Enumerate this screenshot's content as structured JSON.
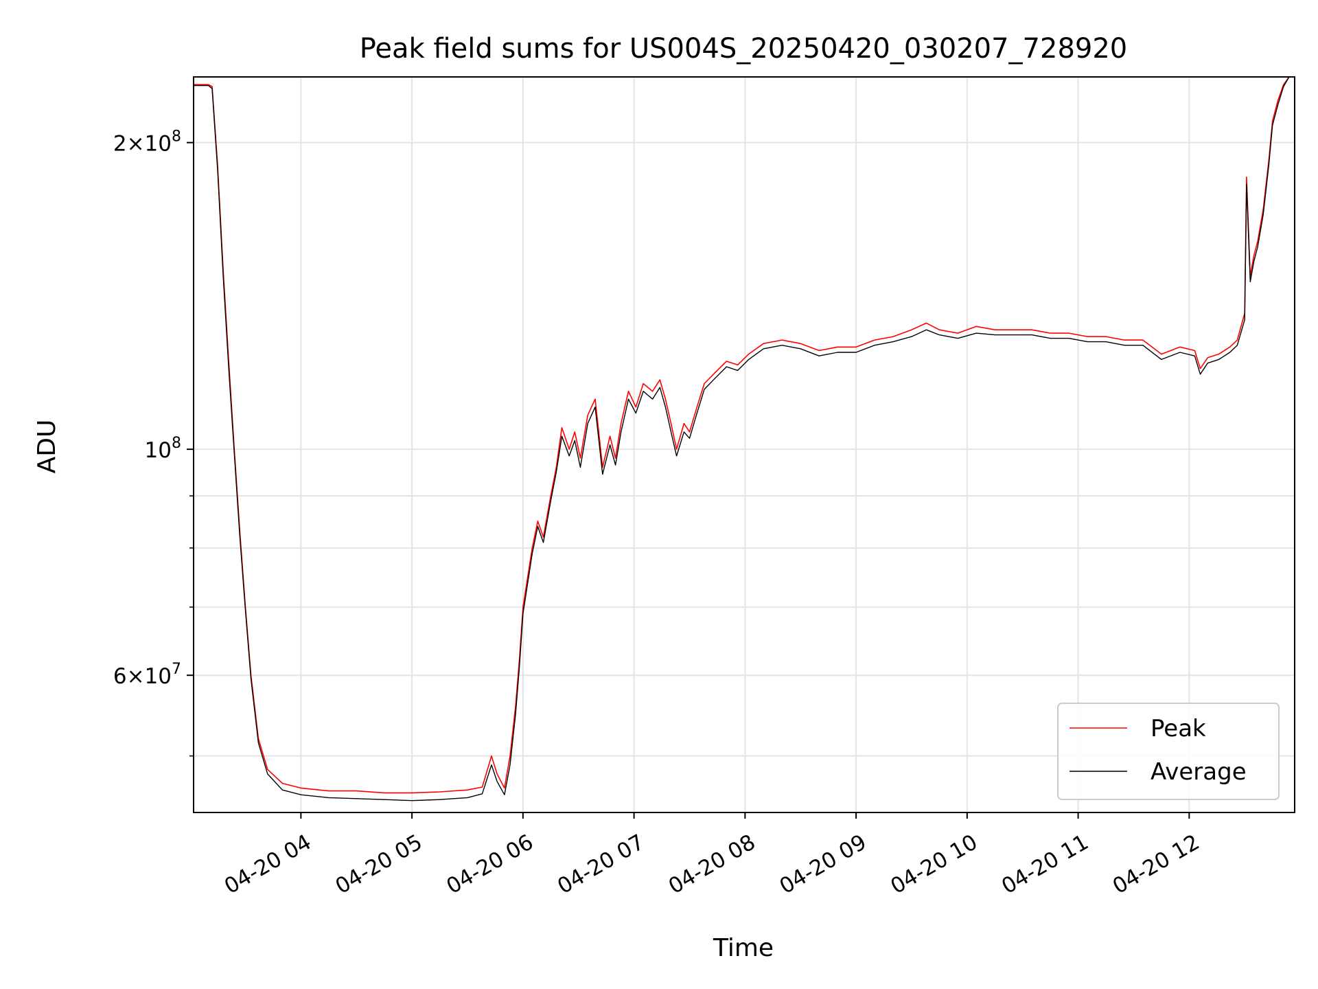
{
  "chart_data": {
    "type": "line",
    "title": "Peak field sums for US004S_20250420_030207_728920",
    "xlabel": "Time",
    "ylabel": "ADU",
    "y_scale": "log",
    "ylim": [
      44000000,
      232000000
    ],
    "xlim": [
      "2025-04-20 03:02",
      "2025-04-20 12:57"
    ],
    "grid": true,
    "legend_position": "lower-right",
    "x_ticks": [
      "04-20 04",
      "04-20 05",
      "04-20 06",
      "04-20 07",
      "04-20 08",
      "04-20 09",
      "04-20 10",
      "04-20 11",
      "04-20 12"
    ],
    "x_tick_times": [
      "2025-04-20 04:00",
      "2025-04-20 05:00",
      "2025-04-20 06:00",
      "2025-04-20 07:00",
      "2025-04-20 08:00",
      "2025-04-20 09:00",
      "2025-04-20 10:00",
      "2025-04-20 11:00",
      "2025-04-20 12:00"
    ],
    "y_tick_labels": [
      {
        "value": 200000000,
        "mantissa": "2",
        "exponent": "8"
      },
      {
        "value": 100000000,
        "mantissa": "",
        "exponent": "8"
      },
      {
        "value": 60000000,
        "mantissa": "6",
        "exponent": "7"
      }
    ],
    "y_minor_grid": [
      50000000,
      70000000,
      80000000,
      90000000
    ],
    "series": [
      {
        "name": "Peak",
        "color": "#ff0000",
        "x": [
          "2025-04-20 03:02",
          "2025-04-20 03:10",
          "2025-04-20 03:12",
          "2025-04-20 03:15",
          "2025-04-20 03:18",
          "2025-04-20 03:21",
          "2025-04-20 03:24",
          "2025-04-20 03:27",
          "2025-04-20 03:30",
          "2025-04-20 03:33",
          "2025-04-20 03:37",
          "2025-04-20 03:42",
          "2025-04-20 03:50",
          "2025-04-20 04:00",
          "2025-04-20 04:15",
          "2025-04-20 04:30",
          "2025-04-20 04:45",
          "2025-04-20 05:00",
          "2025-04-20 05:15",
          "2025-04-20 05:30",
          "2025-04-20 05:38",
          "2025-04-20 05:43",
          "2025-04-20 05:46",
          "2025-04-20 05:50",
          "2025-04-20 05:53",
          "2025-04-20 05:56",
          "2025-04-20 05:58",
          "2025-04-20 06:00",
          "2025-04-20 06:05",
          "2025-04-20 06:08",
          "2025-04-20 06:11",
          "2025-04-20 06:15",
          "2025-04-20 06:18",
          "2025-04-20 06:21",
          "2025-04-20 06:25",
          "2025-04-20 06:28",
          "2025-04-20 06:31",
          "2025-04-20 06:35",
          "2025-04-20 06:39",
          "2025-04-20 06:43",
          "2025-04-20 06:47",
          "2025-04-20 06:50",
          "2025-04-20 06:53",
          "2025-04-20 06:57",
          "2025-04-20 07:01",
          "2025-04-20 07:05",
          "2025-04-20 07:10",
          "2025-04-20 07:14",
          "2025-04-20 07:17",
          "2025-04-20 07:20",
          "2025-04-20 07:23",
          "2025-04-20 07:27",
          "2025-04-20 07:30",
          "2025-04-20 07:34",
          "2025-04-20 07:38",
          "2025-04-20 07:44",
          "2025-04-20 07:50",
          "2025-04-20 07:56",
          "2025-04-20 08:02",
          "2025-04-20 08:10",
          "2025-04-20 08:20",
          "2025-04-20 08:30",
          "2025-04-20 08:40",
          "2025-04-20 08:50",
          "2025-04-20 09:00",
          "2025-04-20 09:10",
          "2025-04-20 09:20",
          "2025-04-20 09:30",
          "2025-04-20 09:38",
          "2025-04-20 09:45",
          "2025-04-20 09:55",
          "2025-04-20 10:05",
          "2025-04-20 10:15",
          "2025-04-20 10:25",
          "2025-04-20 10:35",
          "2025-04-20 10:45",
          "2025-04-20 10:55",
          "2025-04-20 11:05",
          "2025-04-20 11:15",
          "2025-04-20 11:25",
          "2025-04-20 11:35",
          "2025-04-20 11:45",
          "2025-04-20 11:55",
          "2025-04-20 12:03",
          "2025-04-20 12:06",
          "2025-04-20 12:10",
          "2025-04-20 12:16",
          "2025-04-20 12:22",
          "2025-04-20 12:26",
          "2025-04-20 12:30",
          "2025-04-20 12:31",
          "2025-04-20 12:33",
          "2025-04-20 12:35",
          "2025-04-20 12:37",
          "2025-04-20 12:40",
          "2025-04-20 12:43",
          "2025-04-20 12:45",
          "2025-04-20 12:48",
          "2025-04-20 12:51",
          "2025-04-20 12:54",
          "2025-04-20 12:57"
        ],
        "y": [
          228000000,
          228000000,
          227000000,
          190000000,
          150000000,
          122000000,
          100000000,
          83000000,
          70000000,
          60000000,
          52000000,
          48500000,
          47000000,
          46500000,
          46200000,
          46200000,
          46000000,
          46000000,
          46100000,
          46300000,
          46600000,
          50000000,
          48000000,
          46500000,
          50000000,
          56000000,
          62000000,
          70000000,
          80000000,
          85000000,
          82000000,
          90000000,
          96000000,
          105000000,
          100000000,
          104000000,
          98000000,
          108000000,
          112000000,
          96000000,
          103000000,
          98000000,
          106000000,
          114000000,
          110000000,
          116000000,
          114000000,
          117000000,
          112000000,
          106000000,
          100000000,
          106000000,
          104000000,
          110000000,
          116000000,
          119000000,
          122000000,
          121000000,
          124000000,
          127000000,
          128000000,
          127000000,
          125000000,
          126000000,
          126000000,
          128000000,
          129000000,
          131000000,
          133000000,
          131000000,
          130000000,
          132000000,
          131000000,
          131000000,
          131000000,
          130000000,
          130000000,
          129000000,
          129000000,
          128000000,
          128000000,
          124000000,
          126000000,
          125000000,
          120000000,
          123000000,
          124000000,
          126000000,
          128000000,
          136000000,
          185000000,
          148000000,
          155000000,
          160000000,
          172000000,
          192000000,
          210000000,
          220000000,
          228000000,
          232000000,
          232000000
        ]
      },
      {
        "name": "Average",
        "color": "#000000",
        "x": [
          "2025-04-20 03:02",
          "2025-04-20 03:10",
          "2025-04-20 03:12",
          "2025-04-20 03:15",
          "2025-04-20 03:18",
          "2025-04-20 03:21",
          "2025-04-20 03:24",
          "2025-04-20 03:27",
          "2025-04-20 03:30",
          "2025-04-20 03:33",
          "2025-04-20 03:37",
          "2025-04-20 03:42",
          "2025-04-20 03:50",
          "2025-04-20 04:00",
          "2025-04-20 04:15",
          "2025-04-20 04:30",
          "2025-04-20 04:45",
          "2025-04-20 05:00",
          "2025-04-20 05:15",
          "2025-04-20 05:30",
          "2025-04-20 05:38",
          "2025-04-20 05:43",
          "2025-04-20 05:46",
          "2025-04-20 05:50",
          "2025-04-20 05:53",
          "2025-04-20 05:56",
          "2025-04-20 05:58",
          "2025-04-20 06:00",
          "2025-04-20 06:05",
          "2025-04-20 06:08",
          "2025-04-20 06:11",
          "2025-04-20 06:15",
          "2025-04-20 06:18",
          "2025-04-20 06:21",
          "2025-04-20 06:25",
          "2025-04-20 06:28",
          "2025-04-20 06:31",
          "2025-04-20 06:35",
          "2025-04-20 06:39",
          "2025-04-20 06:43",
          "2025-04-20 06:47",
          "2025-04-20 06:50",
          "2025-04-20 06:53",
          "2025-04-20 06:57",
          "2025-04-20 07:01",
          "2025-04-20 07:05",
          "2025-04-20 07:10",
          "2025-04-20 07:14",
          "2025-04-20 07:17",
          "2025-04-20 07:20",
          "2025-04-20 07:23",
          "2025-04-20 07:27",
          "2025-04-20 07:30",
          "2025-04-20 07:34",
          "2025-04-20 07:38",
          "2025-04-20 07:44",
          "2025-04-20 07:50",
          "2025-04-20 07:56",
          "2025-04-20 08:02",
          "2025-04-20 08:10",
          "2025-04-20 08:20",
          "2025-04-20 08:30",
          "2025-04-20 08:40",
          "2025-04-20 08:50",
          "2025-04-20 09:00",
          "2025-04-20 09:10",
          "2025-04-20 09:20",
          "2025-04-20 09:30",
          "2025-04-20 09:38",
          "2025-04-20 09:45",
          "2025-04-20 09:55",
          "2025-04-20 10:05",
          "2025-04-20 10:15",
          "2025-04-20 10:25",
          "2025-04-20 10:35",
          "2025-04-20 10:45",
          "2025-04-20 10:55",
          "2025-04-20 11:05",
          "2025-04-20 11:15",
          "2025-04-20 11:25",
          "2025-04-20 11:35",
          "2025-04-20 11:45",
          "2025-04-20 11:55",
          "2025-04-20 12:03",
          "2025-04-20 12:06",
          "2025-04-20 12:10",
          "2025-04-20 12:16",
          "2025-04-20 12:22",
          "2025-04-20 12:26",
          "2025-04-20 12:30",
          "2025-04-20 12:31",
          "2025-04-20 12:33",
          "2025-04-20 12:35",
          "2025-04-20 12:37",
          "2025-04-20 12:40",
          "2025-04-20 12:43",
          "2025-04-20 12:45",
          "2025-04-20 12:48",
          "2025-04-20 12:51",
          "2025-04-20 12:54",
          "2025-04-20 12:57"
        ],
        "y": [
          227500000,
          227500000,
          226000000,
          188000000,
          148000000,
          120000000,
          99000000,
          82000000,
          69500000,
          59500000,
          51500000,
          48000000,
          46300000,
          45800000,
          45500000,
          45400000,
          45300000,
          45200000,
          45300000,
          45500000,
          45900000,
          49000000,
          47200000,
          45800000,
          49000000,
          55000000,
          61000000,
          69000000,
          79000000,
          84000000,
          81000000,
          89000000,
          95000000,
          103000000,
          98500000,
          102000000,
          96000000,
          106000000,
          110000000,
          94500000,
          101000000,
          96500000,
          104000000,
          112000000,
          108500000,
          114000000,
          112000000,
          115000000,
          110000000,
          104000000,
          98500000,
          104000000,
          102500000,
          108500000,
          114500000,
          117500000,
          120500000,
          119500000,
          122500000,
          125500000,
          126500000,
          125500000,
          123500000,
          124500000,
          124500000,
          126500000,
          127500000,
          129000000,
          131000000,
          129500000,
          128500000,
          130000000,
          129500000,
          129500000,
          129500000,
          128500000,
          128500000,
          127500000,
          127500000,
          126500000,
          126500000,
          122500000,
          124500000,
          123500000,
          118500000,
          121500000,
          122500000,
          124500000,
          126500000,
          134000000,
          182000000,
          146000000,
          153000000,
          158000000,
          170000000,
          190000000,
          208000000,
          218000000,
          227000000,
          232000000,
          232000000
        ]
      }
    ]
  }
}
